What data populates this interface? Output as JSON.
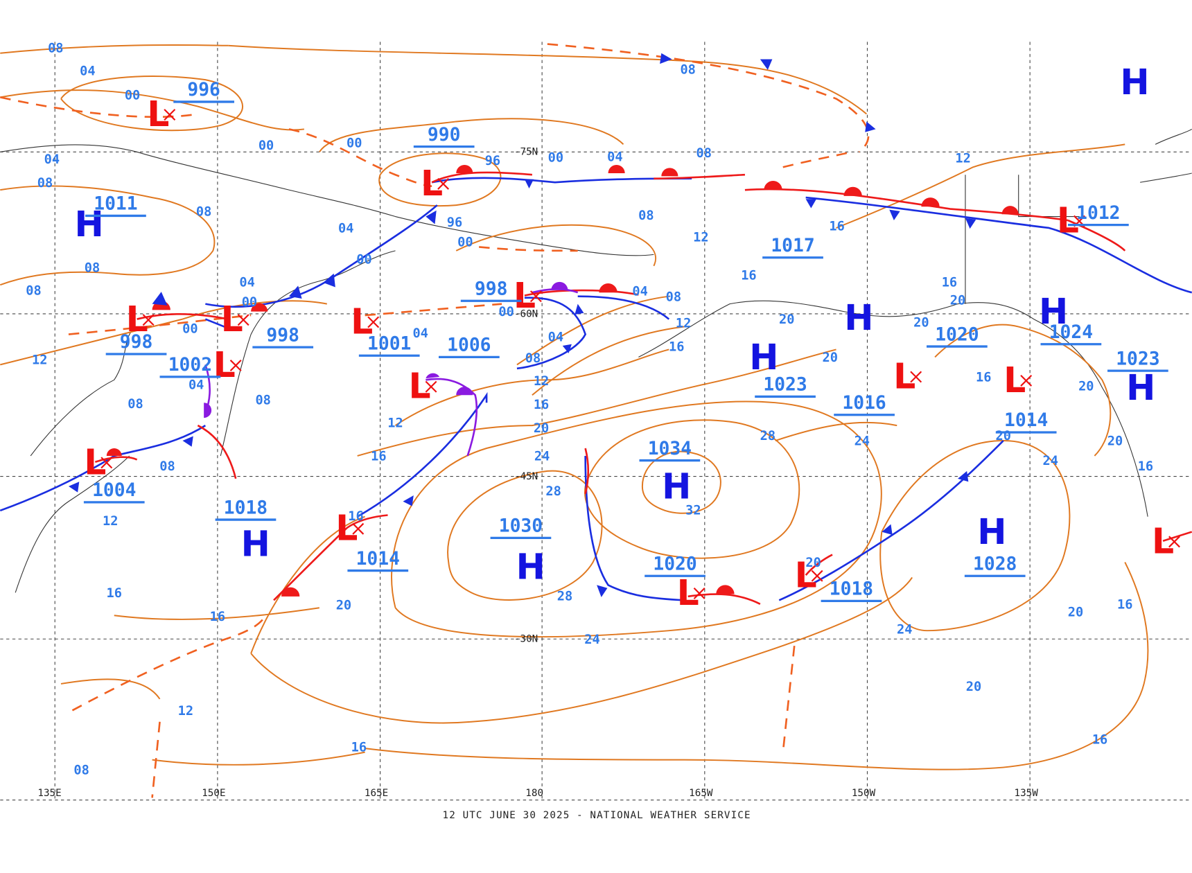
{
  "footer": "12 UTC JUNE 30 2025 - NATIONAL WEATHER SERVICE",
  "longitude_labels": [
    "135E",
    "150E",
    "165E",
    "180",
    "165W",
    "150W",
    "135W"
  ],
  "latitude_labels": [
    "-75N",
    "-60N",
    "-45N",
    "-30N"
  ],
  "centers": [
    "H",
    "H",
    "H",
    "H",
    "H",
    "H",
    "H",
    "H",
    "H",
    "H",
    "L",
    "L",
    "L",
    "L",
    "L",
    "L",
    "L",
    "L",
    "L",
    "L",
    "L",
    "L",
    "L",
    "L",
    "L",
    "L"
  ],
  "central_pressures": [
    "996",
    "990",
    "1011",
    "998",
    "998",
    "998",
    "1001",
    "1006",
    "1002",
    "1004",
    "1017",
    "1023",
    "1016",
    "1020",
    "1024",
    "1023",
    "1014",
    "1012",
    "1034",
    "1030",
    "1018",
    "1014",
    "1020",
    "1018",
    "1028"
  ],
  "isobar_labels": [
    "08",
    "04",
    "00",
    "00",
    "00",
    "04",
    "08",
    "08",
    "04",
    "00",
    "96",
    "96",
    "00",
    "00",
    "04",
    "08",
    "08",
    "08",
    "12",
    "00",
    "04",
    "08",
    "12",
    "16",
    "04",
    "08",
    "12",
    "16",
    "20",
    "24",
    "28",
    "08",
    "08",
    "04",
    "00",
    "00",
    "04",
    "12",
    "08",
    "04",
    "08",
    "12",
    "16",
    "08",
    "12",
    "16",
    "16",
    "20",
    "16",
    "12",
    "08",
    "16",
    "28",
    "24",
    "32",
    "28",
    "24",
    "20",
    "20",
    "16",
    "16",
    "12",
    "16",
    "20",
    "20",
    "16",
    "20",
    "20",
    "24",
    "20",
    "16",
    "24",
    "20",
    "20",
    "16",
    "16",
    "20"
  ]
}
